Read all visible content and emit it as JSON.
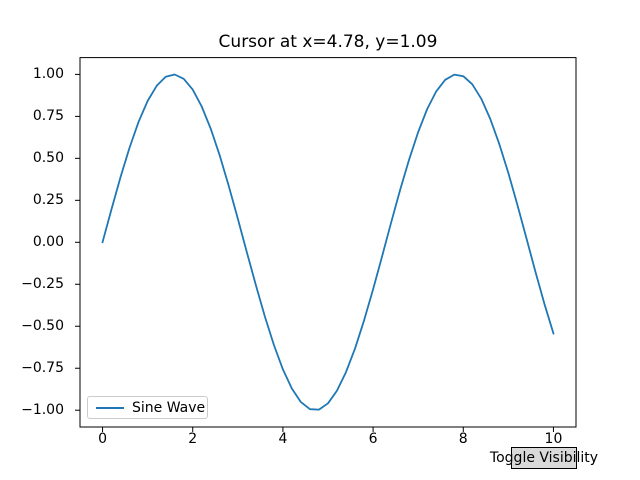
{
  "figure": {
    "background": "#ffffff"
  },
  "legend": {
    "label": "Sine Wave",
    "border_color": "#cccccc"
  },
  "button": {
    "label": "Toggle Visibility",
    "face_color": "#d9d9d9",
    "border_color": "#000000"
  },
  "chart_data": {
    "type": "line",
    "title": "Cursor at x=4.78, y=1.09",
    "xlabel": "",
    "ylabel": "",
    "xlim": [
      -0.5,
      10.5
    ],
    "ylim": [
      -1.1,
      1.1
    ],
    "grid": false,
    "legend_position": "lower-left",
    "axis_color": "#000000",
    "xticks": [
      0,
      2,
      4,
      6,
      8,
      10
    ],
    "xtick_labels": [
      "0",
      "2",
      "4",
      "6",
      "8",
      "10"
    ],
    "yticks": [
      1.0,
      0.75,
      0.5,
      0.25,
      0.0,
      -0.25,
      -0.5,
      -0.75,
      -1.0
    ],
    "ytick_labels": [
      "1.00",
      "0.75",
      "0.50",
      "0.25",
      "0.00",
      "−0.25",
      "−0.50",
      "−0.75",
      "−1.00"
    ],
    "series": [
      {
        "name": "Sine Wave",
        "color": "#1f77b4",
        "line_width": 1.8,
        "points": [
          [
            0.0,
            0.0
          ],
          [
            0.2,
            0.1987
          ],
          [
            0.4,
            0.3894
          ],
          [
            0.6,
            0.5646
          ],
          [
            0.8,
            0.7174
          ],
          [
            1.0,
            0.8415
          ],
          [
            1.2,
            0.932
          ],
          [
            1.4,
            0.9854
          ],
          [
            1.6,
            0.9996
          ],
          [
            1.8,
            0.9738
          ],
          [
            2.0,
            0.9093
          ],
          [
            2.2,
            0.8085
          ],
          [
            2.4,
            0.6755
          ],
          [
            2.6,
            0.5155
          ],
          [
            2.8,
            0.335
          ],
          [
            3.0,
            0.1411
          ],
          [
            3.2,
            -0.0584
          ],
          [
            3.4,
            -0.2555
          ],
          [
            3.6,
            -0.4425
          ],
          [
            3.8,
            -0.6119
          ],
          [
            4.0,
            -0.7568
          ],
          [
            4.2,
            -0.8716
          ],
          [
            4.4,
            -0.9516
          ],
          [
            4.6,
            -0.9937
          ],
          [
            4.8,
            -0.9962
          ],
          [
            5.0,
            -0.9589
          ],
          [
            5.2,
            -0.8835
          ],
          [
            5.4,
            -0.7728
          ],
          [
            5.6,
            -0.6313
          ],
          [
            5.8,
            -0.4646
          ],
          [
            6.0,
            -0.2794
          ],
          [
            6.2,
            -0.0831
          ],
          [
            6.4,
            0.1165
          ],
          [
            6.6,
            0.3115
          ],
          [
            6.8,
            0.4941
          ],
          [
            7.0,
            0.657
          ],
          [
            7.2,
            0.7937
          ],
          [
            7.4,
            0.8987
          ],
          [
            7.6,
            0.9679
          ],
          [
            7.8,
            0.9985
          ],
          [
            8.0,
            0.9894
          ],
          [
            8.2,
            0.9407
          ],
          [
            8.4,
            0.8546
          ],
          [
            8.6,
            0.7344
          ],
          [
            8.8,
            0.5849
          ],
          [
            9.0,
            0.4121
          ],
          [
            9.2,
            0.2229
          ],
          [
            9.4,
            0.0248
          ],
          [
            9.6,
            -0.1743
          ],
          [
            9.8,
            -0.3665
          ],
          [
            10.0,
            -0.544
          ]
        ]
      }
    ]
  }
}
